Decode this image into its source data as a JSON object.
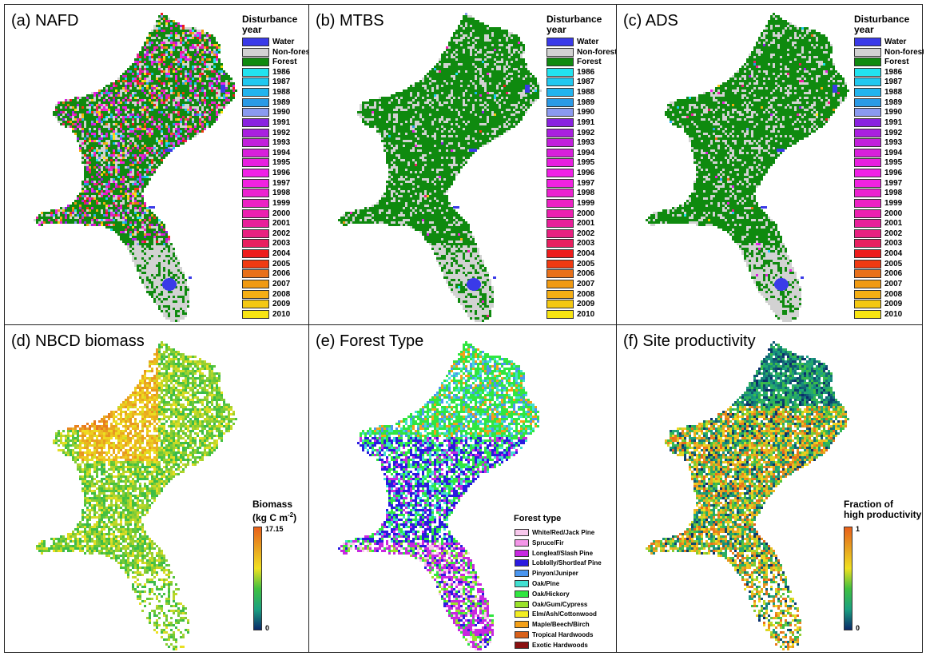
{
  "panels": [
    {
      "id": "a",
      "title": "(a) NAFD",
      "theme": "nafd"
    },
    {
      "id": "b",
      "title": "(b) MTBS",
      "theme": "green"
    },
    {
      "id": "c",
      "title": "(c) ADS",
      "theme": "green"
    },
    {
      "id": "d",
      "title": "(d) NBCD biomass",
      "theme": "biomass"
    },
    {
      "id": "e",
      "title": "(e) Forest Type",
      "theme": "forest"
    },
    {
      "id": "f",
      "title": "(f) Site productivity",
      "theme": "prod"
    }
  ],
  "disturbance_legend": {
    "title_line1": "Disturbance",
    "title_line2": "year",
    "items": [
      {
        "label": "Water",
        "color": "#3a3ae8"
      },
      {
        "label": "Non-forest",
        "color": "#d2d2d2"
      },
      {
        "label": "Forest",
        "color": "#0f8a0f"
      },
      {
        "label": "1986",
        "color": "#22e3ef"
      },
      {
        "label": "1987",
        "color": "#20c8f0"
      },
      {
        "label": "1988",
        "color": "#22b4ee"
      },
      {
        "label": "1989",
        "color": "#2a9ae6"
      },
      {
        "label": "1990",
        "color": "#8a9af0"
      },
      {
        "label": "1991",
        "color": "#8a22e0"
      },
      {
        "label": "1992",
        "color": "#a920e0"
      },
      {
        "label": "1993",
        "color": "#c220dc"
      },
      {
        "label": "1994",
        "color": "#d820dc"
      },
      {
        "label": "1995",
        "color": "#e820e0"
      },
      {
        "label": "1996",
        "color": "#f020e6"
      },
      {
        "label": "1997",
        "color": "#f022e0"
      },
      {
        "label": "1998",
        "color": "#ec22d0"
      },
      {
        "label": "1999",
        "color": "#ec22c4"
      },
      {
        "label": "2000",
        "color": "#ec20b0"
      },
      {
        "label": "2001",
        "color": "#e8209a"
      },
      {
        "label": "2002",
        "color": "#e82080"
      },
      {
        "label": "2003",
        "color": "#e82060"
      },
      {
        "label": "2004",
        "color": "#ee1c1c"
      },
      {
        "label": "2005",
        "color": "#f03a12"
      },
      {
        "label": "2006",
        "color": "#e8701a"
      },
      {
        "label": "2007",
        "color": "#f09a12"
      },
      {
        "label": "2008",
        "color": "#f4ae14"
      },
      {
        "label": "2009",
        "color": "#f4c812"
      },
      {
        "label": "2010",
        "color": "#f8e412"
      }
    ]
  },
  "biomass_legend": {
    "title_line1": "Biomass",
    "title_line2": "(kg C m",
    "title_sup": "-2",
    "title_close": ")",
    "max_label": "17.15",
    "min_label": "0",
    "colors": [
      "#e8601a",
      "#e8a020",
      "#f0e020",
      "#40c040",
      "#1aa080",
      "#0a2a6a"
    ]
  },
  "forest_legend": {
    "title": "Forest type",
    "items": [
      {
        "label": "White/Red/Jack Pine",
        "color": "#f8c8ec"
      },
      {
        "label": "Spruce/Fir",
        "color": "#f496e8"
      },
      {
        "label": "Longleaf/Slash Pine",
        "color": "#c828e0"
      },
      {
        "label": "Loblolly/Shortleaf Pine",
        "color": "#2a1ae0"
      },
      {
        "label": "Pinyon/Juniper",
        "color": "#4a96f0"
      },
      {
        "label": "Oak/Pine",
        "color": "#40e0d0"
      },
      {
        "label": "Oak/Hickory",
        "color": "#30e640"
      },
      {
        "label": "Oak/Gum/Cypress",
        "color": "#9ae22a"
      },
      {
        "label": "Elm/Ash/Cottonwood",
        "color": "#f2ee22"
      },
      {
        "label": "Maple/Beech/Birch",
        "color": "#f4a018"
      },
      {
        "label": "Tropical Hardwoods",
        "color": "#d8601a"
      },
      {
        "label": "Exotic Hardwoods",
        "color": "#8a1010"
      }
    ]
  },
  "productivity_legend": {
    "title_line1": "Fraction of",
    "title_line2": "high productivity",
    "max_label": "1",
    "min_label": "0",
    "colors": [
      "#e8601a",
      "#e8a020",
      "#f0e020",
      "#40c040",
      "#1aa080",
      "#0a2a6a"
    ]
  }
}
